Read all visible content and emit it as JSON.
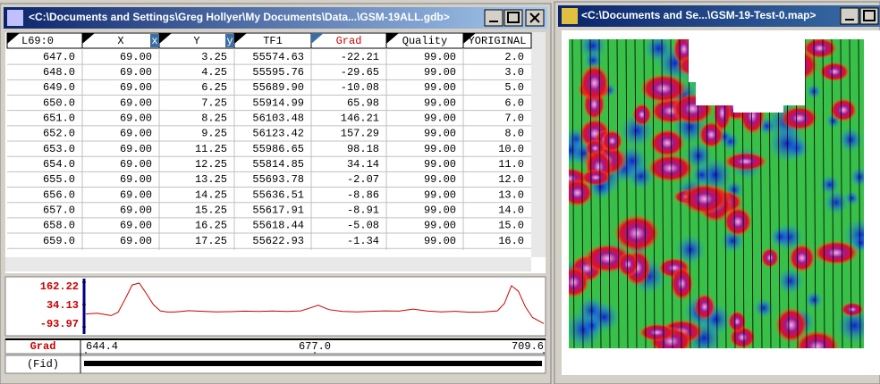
{
  "left_window": {
    "title": "<C:\\Documents and Settings\\Greg Hollyer\\My Documents\\Data...\\GSM-19ALL.gdb>",
    "table": {
      "headers": [
        "L69:0",
        "X",
        "Y",
        "TF1",
        "Grad",
        "Quality",
        "YORIGINAL"
      ],
      "x_marker": "x",
      "y_marker": "y",
      "rows": [
        [
          "647.0",
          "69.00",
          "3.25",
          "55574.63",
          "-22.21",
          "99.00",
          "2.0"
        ],
        [
          "648.0",
          "69.00",
          "4.25",
          "55595.76",
          "-29.65",
          "99.00",
          "3.0"
        ],
        [
          "649.0",
          "69.00",
          "6.25",
          "55689.90",
          "-10.08",
          "99.00",
          "5.0"
        ],
        [
          "650.0",
          "69.00",
          "7.25",
          "55914.99",
          "65.98",
          "99.00",
          "6.0"
        ],
        [
          "651.0",
          "69.00",
          "8.25",
          "56103.48",
          "146.21",
          "99.00",
          "7.0"
        ],
        [
          "652.0",
          "69.00",
          "9.25",
          "56123.42",
          "157.29",
          "99.00",
          "8.0"
        ],
        [
          "653.0",
          "69.00",
          "11.25",
          "55986.65",
          "98.18",
          "99.00",
          "10.0"
        ],
        [
          "654.0",
          "69.00",
          "12.25",
          "55814.85",
          "34.14",
          "99.00",
          "11.0"
        ],
        [
          "655.0",
          "69.00",
          "13.25",
          "55693.78",
          "-2.07",
          "99.00",
          "12.0"
        ],
        [
          "656.0",
          "69.00",
          "14.25",
          "55636.51",
          "-8.86",
          "99.00",
          "13.0"
        ],
        [
          "657.0",
          "69.00",
          "15.25",
          "55617.91",
          "-8.91",
          "99.00",
          "14.0"
        ],
        [
          "658.0",
          "69.00",
          "16.25",
          "55618.44",
          "-5.08",
          "99.00",
          "15.0"
        ],
        [
          "659.0",
          "69.00",
          "17.25",
          "55622.93",
          "-1.34",
          "99.00",
          "16.0"
        ]
      ]
    },
    "profile": {
      "type": "line",
      "color": "#cc0000",
      "x": [
        644.4,
        645,
        646,
        647,
        648,
        649,
        650,
        651,
        652,
        653,
        654,
        655,
        656,
        657,
        658,
        659,
        661,
        663,
        665,
        667,
        669,
        671,
        673,
        675,
        676,
        677.5,
        679,
        681,
        683,
        685,
        687,
        689,
        691,
        693,
        695,
        697,
        699,
        701,
        703,
        704,
        705,
        706,
        707,
        708,
        709.6
      ],
      "values": [
        -20,
        -18,
        -16,
        -22.21,
        -29.65,
        -10.08,
        65.98,
        146.21,
        157.29,
        98.18,
        34.14,
        -2.07,
        -8.86,
        -8.91,
        -5.08,
        -1.34,
        -5,
        -8,
        -7,
        -4,
        -6,
        -3,
        -6,
        -2,
        10,
        30,
        5,
        -6,
        -8,
        -5,
        -2,
        -4,
        8,
        -3,
        -8,
        -5,
        -10,
        -9,
        -2,
        40,
        142,
        110,
        20,
        -40,
        -75
      ],
      "xlim": [
        644.4,
        709.6
      ],
      "ylim": [
        -93.97,
        162.22
      ],
      "yticks": [
        162.22,
        34.13,
        -93.97
      ],
      "xticks": [
        644.4,
        {
          "value": 677,
          "label": "677.0"
        },
        709.6
      ],
      "channel": "Grad",
      "x_label": "(Fid)"
    }
  },
  "right_window": {
    "title": "<C:\\Documents and Se...\\GSM-19-Test-0.map>"
  }
}
